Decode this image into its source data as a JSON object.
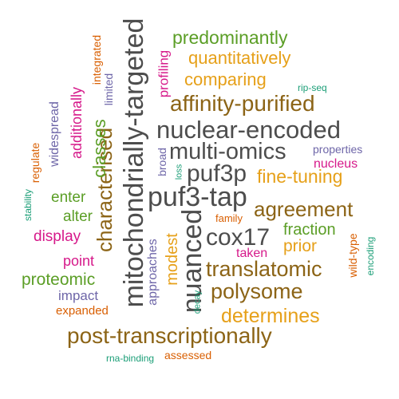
{
  "colors": {
    "gray": "#4d4d4d",
    "gold": "#e6a019",
    "green": "#5b9e26",
    "brown": "#8c6416",
    "magenta": "#d6198a",
    "purple": "#6e66a8",
    "teal": "#1b9e77",
    "orange": "#d95f02"
  },
  "words": [
    {
      "text": "predominantly"
    },
    {
      "text": "quantitatively"
    },
    {
      "text": "comparing"
    },
    {
      "text": "rip-seq"
    },
    {
      "text": "affinity-purified"
    },
    {
      "text": "nuclear-encoded"
    },
    {
      "text": "multi-omics"
    },
    {
      "text": "properties"
    },
    {
      "text": "nucleus"
    },
    {
      "text": "fine-tuning"
    },
    {
      "text": "puf3p"
    },
    {
      "text": "puf3-tap"
    },
    {
      "text": "agreement"
    },
    {
      "text": "cox17"
    },
    {
      "text": "fraction"
    },
    {
      "text": "prior"
    },
    {
      "text": "family"
    },
    {
      "text": "taken"
    },
    {
      "text": "translatomic"
    },
    {
      "text": "polysome"
    },
    {
      "text": "determines"
    },
    {
      "text": "post-transcriptionally"
    },
    {
      "text": "assessed"
    },
    {
      "text": "rna-binding"
    },
    {
      "text": "enter"
    },
    {
      "text": "alter"
    },
    {
      "text": "display"
    },
    {
      "text": "point"
    },
    {
      "text": "proteomic"
    },
    {
      "text": "impact"
    },
    {
      "text": "expanded"
    },
    {
      "text": "mitochondrially-targeted"
    },
    {
      "text": "characterised"
    },
    {
      "text": "nuanced"
    },
    {
      "text": "classes"
    },
    {
      "text": "approaches"
    },
    {
      "text": "modest"
    },
    {
      "text": "broad"
    },
    {
      "text": "loss"
    },
    {
      "text": "decay"
    },
    {
      "text": "profiling"
    },
    {
      "text": "limited"
    },
    {
      "text": "integrated"
    },
    {
      "text": "additionally"
    },
    {
      "text": "widespread"
    },
    {
      "text": "regulate"
    },
    {
      "text": "stability"
    },
    {
      "text": "wild-type"
    },
    {
      "text": "encoding"
    }
  ]
}
